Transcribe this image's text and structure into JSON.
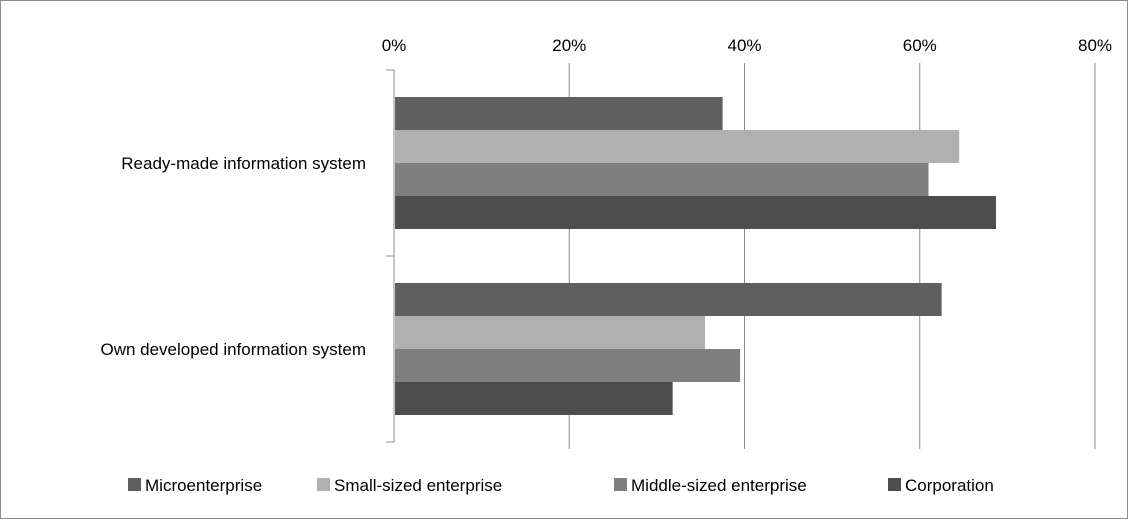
{
  "chart_data": {
    "type": "bar",
    "orientation": "horizontal",
    "categories": [
      "Ready-made information system",
      "Own developed information system"
    ],
    "series": [
      {
        "name": "Microenterprise",
        "values": [
          0.375,
          0.625
        ],
        "color": "#5f5f5f"
      },
      {
        "name": "Small-sized enterprise",
        "values": [
          0.645,
          0.355
        ],
        "color": "#b0b0b0"
      },
      {
        "name": "Middle-sized enterprise",
        "values": [
          0.61,
          0.395
        ],
        "color": "#7f7f7f"
      },
      {
        "name": "Corporation",
        "values": [
          0.687,
          0.318
        ],
        "color": "#4d4d4d"
      }
    ],
    "x_ticks": [
      "0%",
      "20%",
      "40%",
      "60%",
      "80%"
    ],
    "xlim": [
      0,
      0.8
    ],
    "x_axis_position": "top",
    "grid": true,
    "legend_position": "bottom"
  }
}
